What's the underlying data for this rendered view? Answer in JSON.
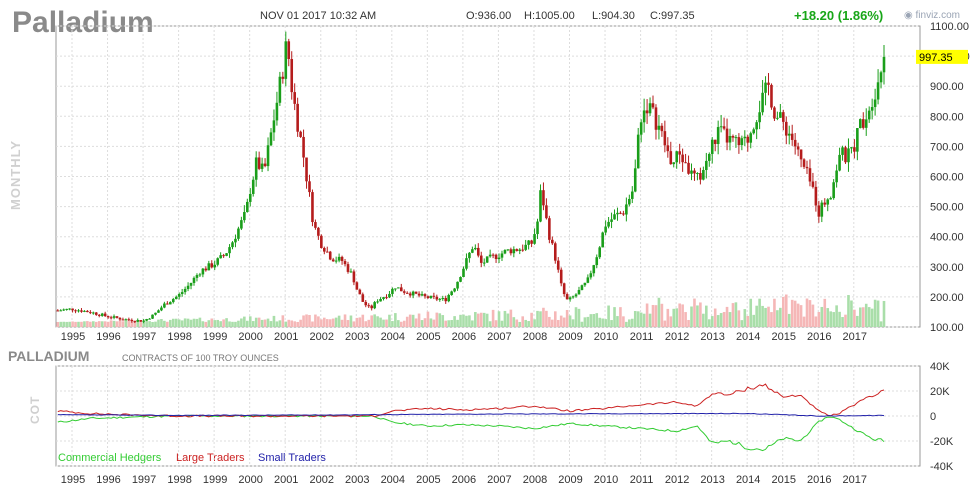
{
  "header": {
    "symbol": "Palladium",
    "datetime": "NOV 01 2017 10:32 AM",
    "open": "O:936.00",
    "high": "H:1005.00",
    "low": "L:904.30",
    "close": "C:997.35",
    "change": "+18.20 (1.86%)",
    "brand": "finviz.com",
    "period": "MONTHLY"
  },
  "current_price_label": "997.35",
  "cot": {
    "title": "PALLADIUM",
    "subtitle": "CONTRACTS OF 100 TROY OUNCES",
    "vertical_label": "COT"
  },
  "colors": {
    "up": "#1a9e1a",
    "down": "#b51c1c",
    "volume_up": "#a9dea9",
    "volume_down": "#f5b7b7",
    "commercial": "#33cc33",
    "large": "#cc2222",
    "small": "#2222aa",
    "grid": "#dddddd",
    "highlight": "#ffff00"
  },
  "chart_data": [
    {
      "type": "candlestick",
      "ylim": [
        100,
        1100
      ],
      "yticks": [
        "1100.00",
        "1000.00",
        "900.00",
        "800.00",
        "700.00",
        "600.00",
        "500.00",
        "400.00",
        "300.00",
        "200.00",
        "100.00"
      ],
      "ytick_values": [
        1100,
        1000,
        900,
        800,
        700,
        600,
        500,
        400,
        300,
        200,
        100
      ],
      "xticks": [
        "1995",
        "1996",
        "1997",
        "1998",
        "1999",
        "2000",
        "2001",
        "2002",
        "2003",
        "2004",
        "2005",
        "2006",
        "2007",
        "2008",
        "2009",
        "2010",
        "2011",
        "2012",
        "2013",
        "2014",
        "2015",
        "2016",
        "2017"
      ],
      "close_anchors": [
        [
          1994.6,
          155
        ],
        [
          1995.0,
          160
        ],
        [
          1995.5,
          150
        ],
        [
          1996.0,
          135
        ],
        [
          1996.5,
          125
        ],
        [
          1997.0,
          120
        ],
        [
          1997.3,
          140
        ],
        [
          1997.6,
          175
        ],
        [
          1998.0,
          205
        ],
        [
          1998.3,
          240
        ],
        [
          1998.6,
          285
        ],
        [
          1999.0,
          310
        ],
        [
          1999.3,
          340
        ],
        [
          1999.5,
          380
        ],
        [
          1999.7,
          430
        ],
        [
          1999.9,
          480
        ],
        [
          2000.0,
          550
        ],
        [
          2000.2,
          650
        ],
        [
          2000.4,
          610
        ],
        [
          2000.6,
          740
        ],
        [
          2000.8,
          870
        ],
        [
          2000.95,
          970
        ],
        [
          2001.05,
          1050
        ],
        [
          2001.2,
          880
        ],
        [
          2001.5,
          680
        ],
        [
          2001.8,
          440
        ],
        [
          2002.0,
          380
        ],
        [
          2002.3,
          330
        ],
        [
          2002.6,
          320
        ],
        [
          2002.9,
          270
        ],
        [
          2003.0,
          230
        ],
        [
          2003.2,
          180
        ],
        [
          2003.4,
          160
        ],
        [
          2003.6,
          190
        ],
        [
          2003.9,
          210
        ],
        [
          2004.1,
          235
        ],
        [
          2004.3,
          220
        ],
        [
          2004.6,
          210
        ],
        [
          2004.9,
          200
        ],
        [
          2005.2,
          195
        ],
        [
          2005.5,
          190
        ],
        [
          2005.8,
          240
        ],
        [
          2006.1,
          320
        ],
        [
          2006.3,
          375
        ],
        [
          2006.5,
          310
        ],
        [
          2006.8,
          330
        ],
        [
          2007.0,
          340
        ],
        [
          2007.3,
          355
        ],
        [
          2007.6,
          360
        ],
        [
          2007.8,
          370
        ],
        [
          2007.95,
          380
        ],
        [
          2008.1,
          450
        ],
        [
          2008.2,
          560
        ],
        [
          2008.4,
          420
        ],
        [
          2008.6,
          330
        ],
        [
          2008.8,
          220
        ],
        [
          2008.95,
          185
        ],
        [
          2009.2,
          210
        ],
        [
          2009.5,
          250
        ],
        [
          2009.8,
          350
        ],
        [
          2010.0,
          440
        ],
        [
          2010.3,
          470
        ],
        [
          2010.5,
          480
        ],
        [
          2010.8,
          560
        ],
        [
          2011.0,
          800
        ],
        [
          2011.2,
          840
        ],
        [
          2011.5,
          770
        ],
        [
          2011.7,
          700
        ],
        [
          2011.9,
          640
        ],
        [
          2012.1,
          680
        ],
        [
          2012.4,
          610
        ],
        [
          2012.6,
          590
        ],
        [
          2012.8,
          630
        ],
        [
          2013.0,
          700
        ],
        [
          2013.2,
          750
        ],
        [
          2013.5,
          720
        ],
        [
          2013.8,
          700
        ],
        [
          2014.0,
          720
        ],
        [
          2014.3,
          820
        ],
        [
          2014.6,
          900
        ],
        [
          2014.8,
          800
        ],
        [
          2015.0,
          780
        ],
        [
          2015.3,
          720
        ],
        [
          2015.5,
          650
        ],
        [
          2015.7,
          600
        ],
        [
          2015.9,
          540
        ],
        [
          2016.0,
          480
        ],
        [
          2016.2,
          520
        ],
        [
          2016.4,
          560
        ],
        [
          2016.6,
          680
        ],
        [
          2016.8,
          660
        ],
        [
          2017.0,
          700
        ],
        [
          2017.2,
          780
        ],
        [
          2017.4,
          820
        ],
        [
          2017.6,
          890
        ],
        [
          2017.75,
          950
        ],
        [
          2017.85,
          997.35
        ]
      ],
      "volume_scale": "relative"
    },
    {
      "type": "line",
      "title": "PALLADIUM",
      "ylim": [
        -40000,
        40000
      ],
      "yticks": [
        "40K",
        "20K",
        "0",
        "-20K",
        "-40K"
      ],
      "ytick_values": [
        40000,
        20000,
        0,
        -20000,
        -40000
      ],
      "xticks": [
        "1995",
        "1996",
        "1997",
        "1998",
        "1999",
        "2000",
        "2001",
        "2002",
        "2003",
        "2004",
        "2005",
        "2006",
        "2007",
        "2008",
        "2009",
        "2010",
        "2011",
        "2012",
        "2013",
        "2014",
        "2015",
        "2016",
        "2017"
      ],
      "series": [
        {
          "name": "Commercial Hedgers",
          "color": "#33cc33",
          "points": [
            [
              1994.6,
              -5000
            ],
            [
              1995.5,
              -2000
            ],
            [
              1996.5,
              -1000
            ],
            [
              1998,
              0
            ],
            [
              2000,
              0
            ],
            [
              2002,
              0
            ],
            [
              2003.5,
              0
            ],
            [
              2004,
              -5000
            ],
            [
              2005,
              -8000
            ],
            [
              2006,
              -7000
            ],
            [
              2007,
              -8000
            ],
            [
              2008,
              -10000
            ],
            [
              2009,
              -6000
            ],
            [
              2010,
              -8000
            ],
            [
              2011,
              -10000
            ],
            [
              2012,
              -12000
            ],
            [
              2012.6,
              -8000
            ],
            [
              2013,
              -22000
            ],
            [
              2013.5,
              -20000
            ],
            [
              2014,
              -25000
            ],
            [
              2014.5,
              -27000
            ],
            [
              2015,
              -18000
            ],
            [
              2015.5,
              -20000
            ],
            [
              2016,
              -5000
            ],
            [
              2016.3,
              0
            ],
            [
              2016.6,
              -3000
            ],
            [
              2017,
              -10000
            ],
            [
              2017.5,
              -18000
            ],
            [
              2017.85,
              -20000
            ]
          ]
        },
        {
          "name": "Large Traders",
          "color": "#cc2222",
          "points": [
            [
              1994.6,
              4000
            ],
            [
              1995.5,
              2000
            ],
            [
              1996.5,
              1000
            ],
            [
              1998,
              0
            ],
            [
              2000,
              0
            ],
            [
              2002,
              0
            ],
            [
              2003.5,
              0
            ],
            [
              2004,
              4000
            ],
            [
              2005,
              6000
            ],
            [
              2006,
              5000
            ],
            [
              2007,
              6000
            ],
            [
              2008,
              8000
            ],
            [
              2009,
              4000
            ],
            [
              2010,
              6000
            ],
            [
              2011,
              9000
            ],
            [
              2012,
              11000
            ],
            [
              2012.6,
              8000
            ],
            [
              2013,
              18000
            ],
            [
              2013.5,
              17000
            ],
            [
              2014,
              22000
            ],
            [
              2014.5,
              25000
            ],
            [
              2015,
              15000
            ],
            [
              2015.5,
              17000
            ],
            [
              2016,
              4000
            ],
            [
              2016.3,
              0
            ],
            [
              2016.6,
              2000
            ],
            [
              2017,
              9000
            ],
            [
              2017.5,
              16000
            ],
            [
              2017.85,
              20000
            ]
          ]
        },
        {
          "name": "Small Traders",
          "color": "#2222aa",
          "points": [
            [
              1994.6,
              1000
            ],
            [
              1998,
              500
            ],
            [
              2002,
              800
            ],
            [
              2006,
              1500
            ],
            [
              2010,
              1800
            ],
            [
              2014,
              2000
            ],
            [
              2016,
              0
            ],
            [
              2017.85,
              500
            ]
          ]
        }
      ]
    }
  ]
}
